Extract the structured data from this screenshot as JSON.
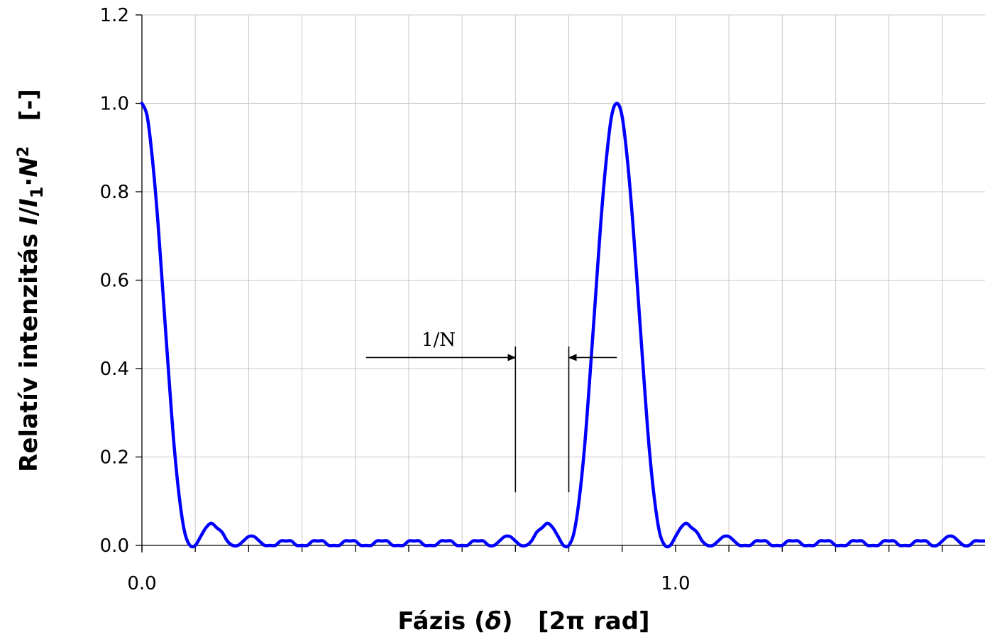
{
  "chart_data": {
    "type": "line",
    "title": "",
    "xlabel": "Fázis (δ)   [2π rad]",
    "xlabel_parts": {
      "pre": "Fázis (",
      "sym": "δ",
      "post": ")   [2π rad]"
    },
    "ylabel": "Relatív intenzitás I/I1·N2   [-]",
    "ylabel_parts": {
      "pre": "Relatív intenzitás ",
      "i1": "I",
      "slash": "/",
      "i2": "I",
      "sub": "1",
      "dot": "·",
      "n": "N",
      "sup": "2",
      "post": "   [-]"
    },
    "xlim": [
      0,
      1.58
    ],
    "ylim": [
      0,
      1.2
    ],
    "x_ticks": [
      {
        "value": 0,
        "label": "0.0"
      },
      {
        "value": 1,
        "label": "1.0"
      }
    ],
    "x_grid_step": 0.1,
    "y_ticks": [
      {
        "value": 0,
        "label": "0.0"
      },
      {
        "value": 0.2,
        "label": "0.2"
      },
      {
        "value": 0.4,
        "label": "0.4"
      },
      {
        "value": 0.6,
        "label": "0.6"
      },
      {
        "value": 0.8,
        "label": "0.8"
      },
      {
        "value": 1.0,
        "label": "1.0"
      },
      {
        "value": 1.2,
        "label": "1.2"
      }
    ],
    "grid": true,
    "series": [
      {
        "color": "#0000ff",
        "x": [
          0,
          0.01,
          0.02,
          0.03,
          0.04,
          0.05,
          0.06,
          0.07,
          0.08,
          0.09,
          0.1,
          0.11,
          0.12,
          0.13,
          0.14,
          0.15,
          0.16,
          0.17,
          0.18,
          0.19,
          0.2,
          0.21,
          0.22,
          0.23,
          0.24,
          0.25,
          0.26,
          0.27,
          0.28,
          0.29,
          0.3,
          0.31,
          0.32,
          0.33,
          0.34,
          0.35,
          0.36,
          0.37,
          0.38,
          0.39,
          0.4,
          0.41,
          0.42,
          0.43,
          0.44,
          0.45,
          0.46,
          0.47,
          0.48,
          0.49,
          0.5,
          0.51,
          0.52,
          0.53,
          0.54,
          0.55,
          0.56,
          0.57,
          0.58,
          0.59,
          0.6,
          0.61,
          0.62,
          0.63,
          0.64,
          0.65,
          0.66,
          0.67,
          0.68,
          0.69,
          0.7,
          0.71,
          0.72,
          0.73,
          0.74,
          0.75,
          0.76,
          0.77,
          0.78,
          0.79,
          0.8,
          0.81,
          0.82,
          0.83,
          0.84,
          0.85,
          0.86,
          0.87,
          0.88,
          0.89,
          0.9,
          0.91,
          0.92,
          0.93,
          0.94,
          0.95,
          0.96,
          0.97,
          0.98,
          0.99,
          1.0,
          1.01,
          1.02,
          1.03,
          1.04,
          1.05,
          1.06,
          1.07,
          1.08,
          1.09,
          1.1,
          1.11,
          1.12,
          1.13,
          1.14,
          1.15,
          1.16,
          1.17,
          1.18,
          1.19,
          1.2,
          1.21,
          1.22,
          1.23,
          1.24,
          1.25,
          1.26,
          1.27,
          1.28,
          1.29,
          1.3,
          1.31,
          1.32,
          1.33,
          1.34,
          1.35,
          1.36,
          1.37,
          1.38,
          1.39,
          1.4,
          1.41,
          1.42,
          1.43,
          1.44,
          1.45,
          1.46,
          1.47,
          1.48,
          1.49,
          1.5,
          1.51,
          1.52,
          1.53,
          1.54,
          1.55,
          1.56,
          1.57,
          1.58
        ],
        "y": [
          1.0,
          0.97,
          0.87,
          0.73,
          0.56,
          0.39,
          0.23,
          0.11,
          0.03,
          0.0,
          0.0,
          0.02,
          0.04,
          0.05,
          0.04,
          0.03,
          0.01,
          0.0,
          0.0,
          0.01,
          0.02,
          0.02,
          0.01,
          0.0,
          0.0,
          0.0,
          0.01,
          0.01,
          0.01,
          0.0,
          0.0,
          0.0,
          0.01,
          0.01,
          0.01,
          0.0,
          0.0,
          0.0,
          0.01,
          0.01,
          0.01,
          0.0,
          0.0,
          0.0,
          0.01,
          0.01,
          0.01,
          0.0,
          0.0,
          0.0,
          0.01,
          0.01,
          0.01,
          0.0,
          0.0,
          0.0,
          0.01,
          0.01,
          0.01,
          0.0,
          0.0,
          0.0,
          0.01,
          0.01,
          0.01,
          0.0,
          0.0,
          0.01,
          0.02,
          0.02,
          0.01,
          0.0,
          0.0,
          0.01,
          0.03,
          0.04,
          0.05,
          0.04,
          0.02,
          0.0,
          0.0,
          0.03,
          0.11,
          0.23,
          0.39,
          0.56,
          0.73,
          0.87,
          0.97,
          1.0,
          0.97,
          0.87,
          0.73,
          0.56,
          0.39,
          0.23,
          0.11,
          0.03,
          0.0,
          0.0,
          0.02,
          0.04,
          0.05,
          0.04,
          0.03,
          0.01,
          0.0,
          0.0,
          0.01,
          0.02,
          0.02,
          0.01,
          0.0,
          0.0,
          0.0,
          0.01,
          0.01,
          0.01,
          0.0,
          0.0,
          0.0,
          0.01,
          0.01,
          0.01,
          0.0,
          0.0,
          0.0,
          0.01,
          0.01,
          0.01,
          0.0,
          0.0,
          0.0,
          0.01,
          0.01,
          0.01,
          0.0,
          0.0,
          0.0,
          0.01,
          0.01,
          0.01,
          0.0,
          0.0,
          0.0,
          0.01,
          0.01,
          0.01,
          0.0,
          0.0,
          0.01,
          0.02,
          0.02,
          0.01,
          0.0,
          0.0,
          0.01,
          0.01,
          0.01
        ]
      }
    ],
    "annotation": {
      "label": "1/N",
      "from_x": 0.7,
      "to_x": 0.8,
      "arrow_y": 0.425,
      "line_top_y": 0.45,
      "line_bottom_y": 0.12,
      "outer_left_x": 0.42,
      "outer_right_x": 0.89
    }
  }
}
